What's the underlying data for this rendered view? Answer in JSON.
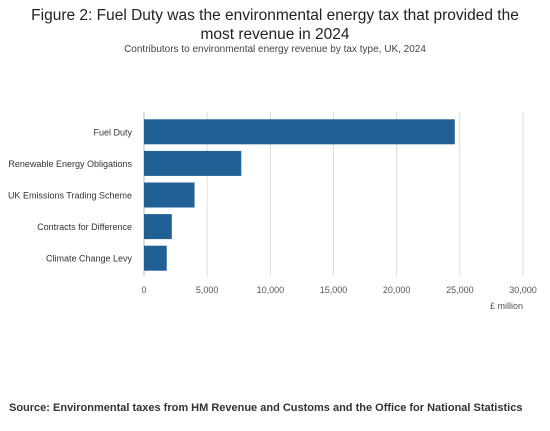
{
  "header": {
    "title_line1": "Figure 2: Fuel Duty was the environmental energy tax that provided the",
    "title_line2": "most revenue in 2024",
    "subtitle": "Contributors to environmental energy revenue by tax type, UK, 2024"
  },
  "chart_data": {
    "type": "bar",
    "orientation": "horizontal",
    "title": "Figure 2: Fuel Duty was the environmental energy tax that provided the most revenue in 2024",
    "subtitle": "Contributors to environmental energy revenue by tax type, UK, 2024",
    "categories": [
      "Fuel Duty",
      "Renewable Energy Obligations",
      "UK Emissions Trading Scheme",
      "Contracts for Difference",
      "Climate Change Levy"
    ],
    "values": [
      24600,
      7700,
      4000,
      2200,
      1800
    ],
    "xlabel": "£ million",
    "xlim": [
      0,
      30000
    ],
    "xticks": [
      0,
      5000,
      10000,
      15000,
      20000,
      25000,
      30000
    ],
    "xtick_labels": [
      "0",
      "5,000",
      "10,000",
      "15,000",
      "20,000",
      "25,000",
      "30,000"
    ],
    "bar_color": "#206095",
    "grid": true,
    "grid_color": "#dddddd"
  },
  "footer": {
    "source": "Source: Environmental taxes from HM Revenue and Customs and the Office for National Statistics"
  }
}
